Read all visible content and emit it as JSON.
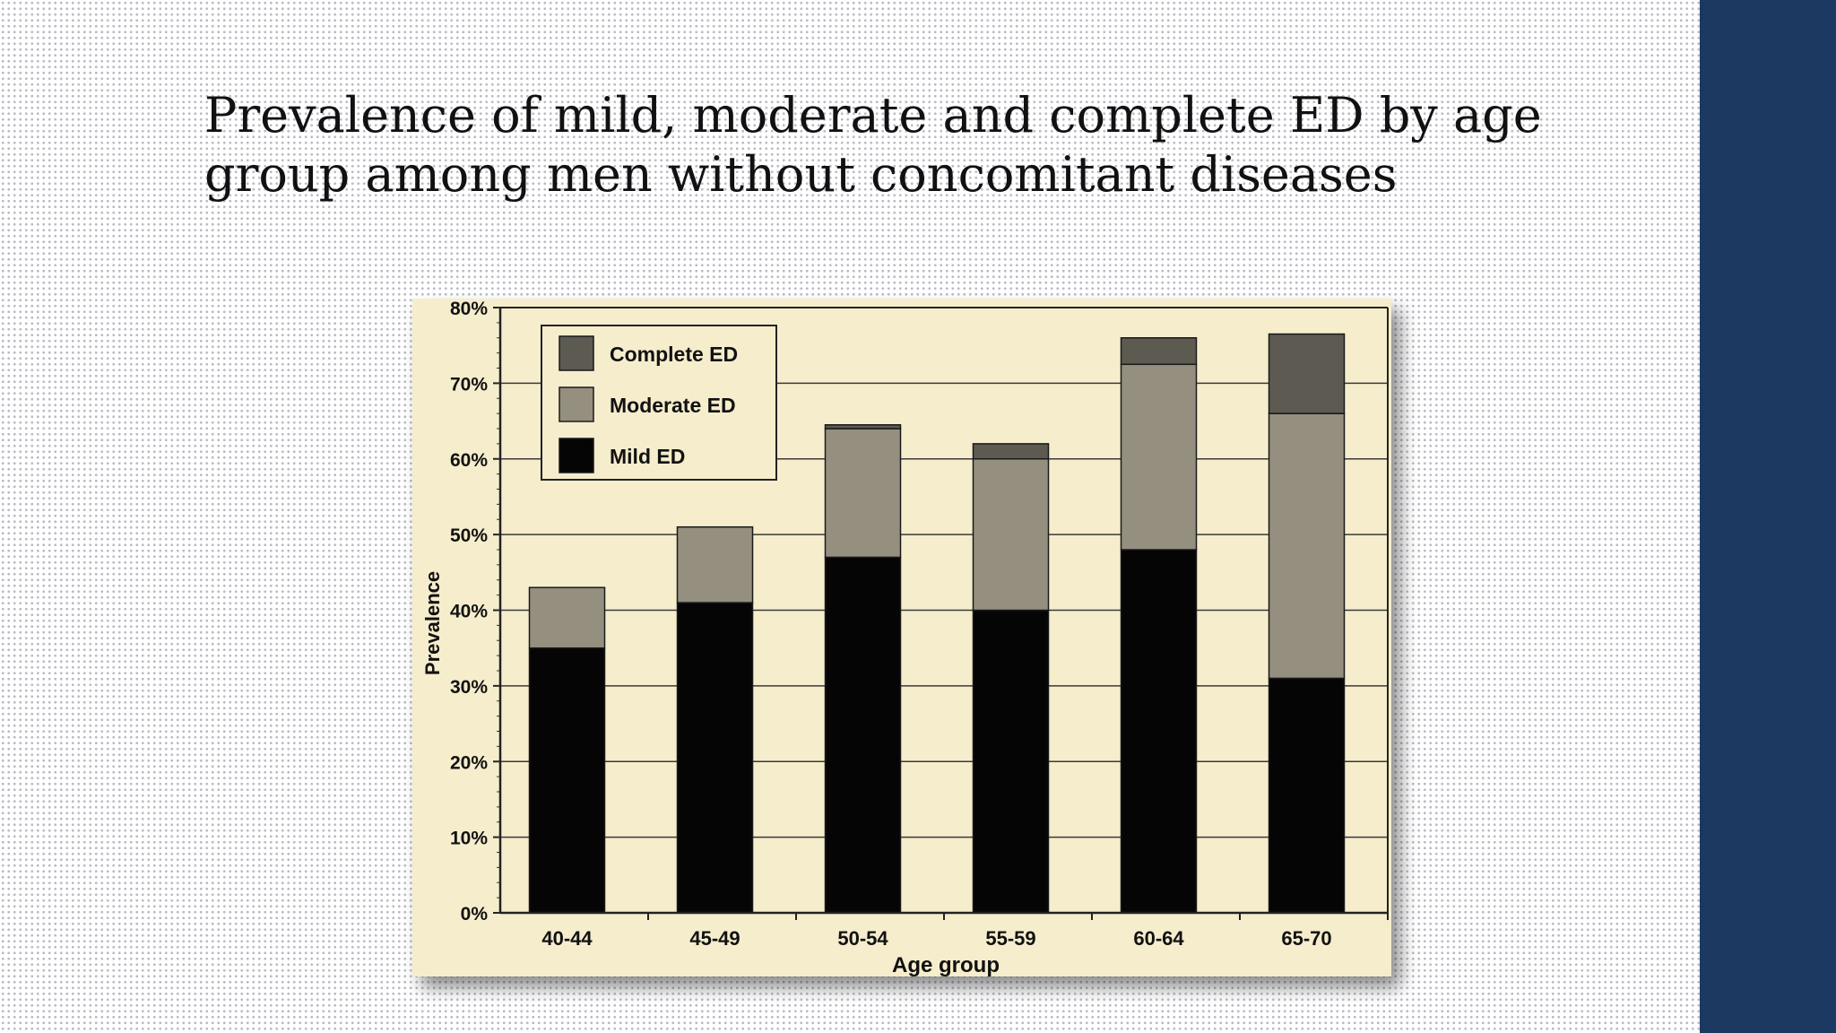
{
  "slide": {
    "title_line1": "Prevalence of mild, moderate and complete ED by age",
    "title_line2": "group among men without concomitant diseases"
  },
  "colors": {
    "side_band": "#1c3961",
    "chart_background": "#f5edcc",
    "mild": "#050505",
    "moderate": "#958f80",
    "complete": "#5d5a52"
  },
  "chart_data": {
    "type": "bar",
    "stacked": true,
    "title": "",
    "xlabel": "Age group",
    "ylabel": "Prevalence",
    "ylim": [
      0,
      80
    ],
    "yticks": [
      "0%",
      "10%",
      "20%",
      "30%",
      "40%",
      "50%",
      "60%",
      "70%",
      "80%"
    ],
    "grid": true,
    "legend": "top-left",
    "categories": [
      "40-44",
      "45-49",
      "50-54",
      "55-59",
      "60-64",
      "65-70"
    ],
    "series": [
      {
        "name": "Mild ED",
        "color": "#050505",
        "values": [
          35,
          41,
          47,
          40,
          48,
          31
        ]
      },
      {
        "name": "Moderate ED",
        "color": "#958f80",
        "values": [
          8,
          10,
          17,
          20,
          24.5,
          35
        ]
      },
      {
        "name": "Complete ED",
        "color": "#5d5a52",
        "values": [
          0,
          0,
          0.5,
          2,
          3.5,
          10.5
        ]
      }
    ],
    "legend_order": [
      "Complete ED",
      "Moderate ED",
      "Mild ED"
    ]
  }
}
